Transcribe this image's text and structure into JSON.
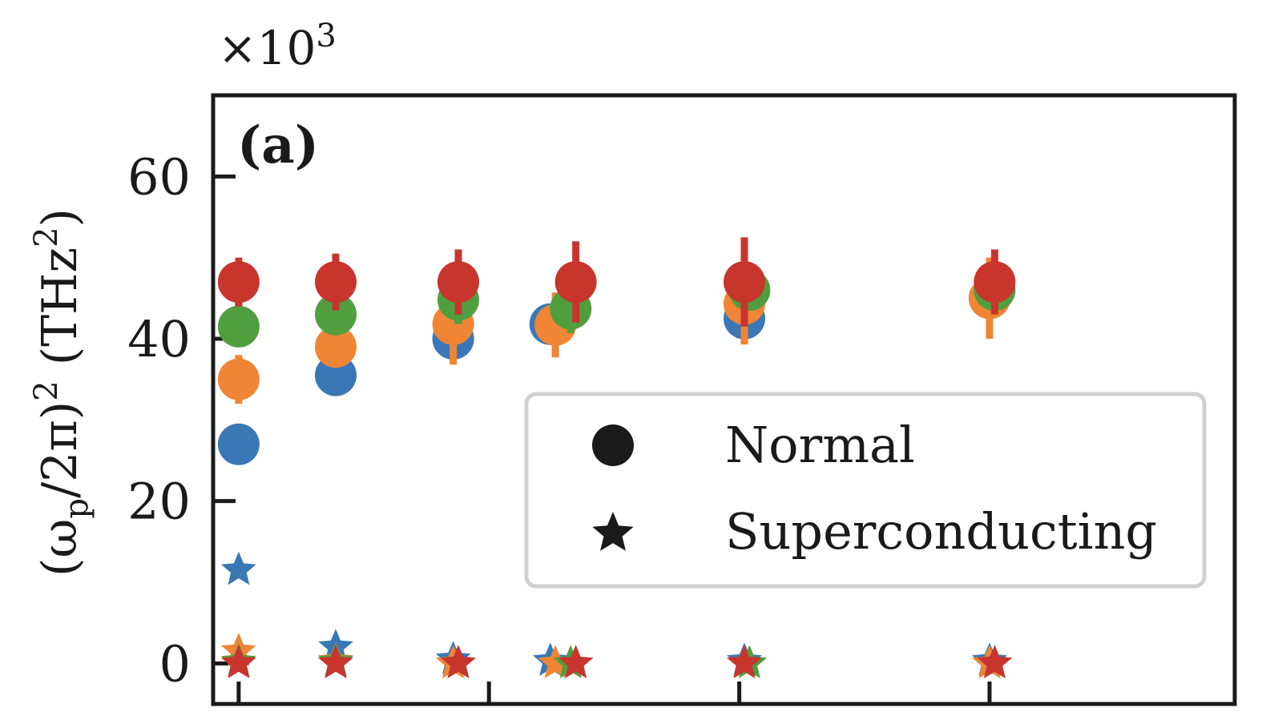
{
  "chart_data": {
    "type": "scatter",
    "panel_label": "(a)",
    "y_multiplier_base": "×10",
    "y_multiplier_exp": "3",
    "ylabel_main": "(ω",
    "ylabel_sub": "p",
    "ylabel_mid": "/2π)",
    "ylabel_pow": "2",
    "ylabel_unit": "(THz",
    "ylabel_unit_pow": "2",
    "ylabel_close": ")",
    "ylim": [
      -5,
      70
    ],
    "xlim": [
      0,
      10
    ],
    "yticks": [
      0,
      20,
      40,
      60
    ],
    "ytick_labels": [
      "0",
      "20",
      "40",
      "60"
    ],
    "xticks": [
      0.25,
      2.7,
      5.15,
      7.6
    ],
    "grid": false,
    "legend": {
      "position": "center-right",
      "entries": [
        {
          "label": "Normal",
          "marker": "circle"
        },
        {
          "label": "Superconducting",
          "marker": "star"
        }
      ]
    },
    "series": [
      {
        "color": "#3a78b5",
        "normal": [
          {
            "x": 0.25,
            "y": 27,
            "err": 0
          },
          {
            "x": 1.2,
            "y": 35.5,
            "err": 0
          },
          {
            "x": 2.35,
            "y": 40,
            "err": 0
          },
          {
            "x": 3.3,
            "y": 41.8,
            "err": 0
          },
          {
            "x": 5.2,
            "y": 42.5,
            "err": 0
          },
          {
            "x": 7.6,
            "y": 45,
            "err": 0
          }
        ],
        "superconducting": [
          {
            "x": 0.25,
            "y": 11.5
          },
          {
            "x": 1.2,
            "y": 2
          },
          {
            "x": 2.35,
            "y": 0.5
          },
          {
            "x": 3.3,
            "y": 0.3
          },
          {
            "x": 5.2,
            "y": 0.3
          },
          {
            "x": 7.6,
            "y": 0.3
          }
        ]
      },
      {
        "color": "#ef8535",
        "normal": [
          {
            "x": 0.25,
            "y": 35,
            "err": 3
          },
          {
            "x": 1.2,
            "y": 39,
            "err": 2
          },
          {
            "x": 2.35,
            "y": 41.8,
            "err": 5
          },
          {
            "x": 3.35,
            "y": 41.7,
            "err": 4
          },
          {
            "x": 5.2,
            "y": 44.3,
            "err": 5
          },
          {
            "x": 7.6,
            "y": 45,
            "err": 5
          }
        ],
        "superconducting": [
          {
            "x": 0.25,
            "y": 1.5
          },
          {
            "x": 1.2,
            "y": 0.3
          },
          {
            "x": 2.35,
            "y": 0
          },
          {
            "x": 3.35,
            "y": 0
          },
          {
            "x": 5.2,
            "y": 0
          },
          {
            "x": 7.6,
            "y": 0
          }
        ]
      },
      {
        "color": "#519e3e",
        "normal": [
          {
            "x": 0.25,
            "y": 41.5,
            "err": 2.5
          },
          {
            "x": 1.2,
            "y": 43,
            "err": 2
          },
          {
            "x": 2.4,
            "y": 44.8,
            "err": 3
          },
          {
            "x": 3.5,
            "y": 43.7,
            "err": 3
          },
          {
            "x": 5.25,
            "y": 46,
            "err": 2
          },
          {
            "x": 7.65,
            "y": 46,
            "err": 2
          }
        ],
        "superconducting": [
          {
            "x": 0.25,
            "y": 0.2
          },
          {
            "x": 1.2,
            "y": 0.2
          },
          {
            "x": 2.4,
            "y": 0
          },
          {
            "x": 3.5,
            "y": 0
          },
          {
            "x": 5.25,
            "y": 0
          },
          {
            "x": 7.65,
            "y": 0
          }
        ]
      },
      {
        "color": "#c7352d",
        "normal": [
          {
            "x": 0.25,
            "y": 47,
            "err": 3
          },
          {
            "x": 1.2,
            "y": 47,
            "err": 3.5
          },
          {
            "x": 2.4,
            "y": 47,
            "err": 4
          },
          {
            "x": 3.55,
            "y": 47,
            "err": 5
          },
          {
            "x": 5.2,
            "y": 47,
            "err": 5.5
          },
          {
            "x": 7.65,
            "y": 47,
            "err": 4
          }
        ],
        "superconducting": [
          {
            "x": 0.25,
            "y": 0
          },
          {
            "x": 1.2,
            "y": 0
          },
          {
            "x": 2.4,
            "y": 0
          },
          {
            "x": 3.55,
            "y": 0
          },
          {
            "x": 5.2,
            "y": 0
          },
          {
            "x": 7.65,
            "y": 0
          }
        ]
      }
    ]
  }
}
